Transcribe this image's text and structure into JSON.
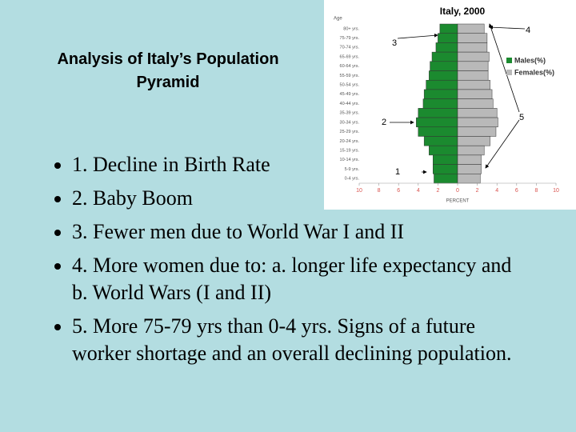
{
  "slide": {
    "title": "Analysis of Italy’s Population Pyramid",
    "bullets": [
      "1. Decline in Birth Rate",
      "2. Baby Boom",
      "3. Fewer men due to World War I and II",
      "4. More women due to: a. longer life expectancy and b. World Wars (I and II)",
      "5. More 75-79 yrs than 0-4 yrs. Signs of a future worker shortage and an overall declining population."
    ]
  },
  "chart_data": {
    "type": "pyramid",
    "title": "Italy, 2000",
    "y_label": "Age",
    "x_label": "PERCENT",
    "categories": [
      "80+ yrs.",
      "75-79 yrs.",
      "70-74 yrs.",
      "65-69 yrs.",
      "60-64 yrs.",
      "55-59 yrs.",
      "50-54 yrs.",
      "45-49 yrs.",
      "40-44 yrs.",
      "35-39 yrs.",
      "30-34 yrs.",
      "25-29 yrs.",
      "20-24 yrs.",
      "15-19 yrs.",
      "10-14 yrs.",
      "5-9 yrs.",
      "0-4 yrs."
    ],
    "series": [
      {
        "name": "Males(%)",
        "color": "#1b8a2f",
        "side": "left",
        "values": [
          1.8,
          2.0,
          2.2,
          2.6,
          2.8,
          2.9,
          3.2,
          3.4,
          3.5,
          4.0,
          4.2,
          4.0,
          3.4,
          2.9,
          2.5,
          2.5,
          2.4
        ]
      },
      {
        "name": "Females(%)",
        "color": "#b9b9b9",
        "side": "right",
        "values": [
          2.7,
          3.0,
          3.0,
          3.2,
          3.1,
          3.1,
          3.3,
          3.5,
          3.6,
          4.0,
          4.1,
          3.9,
          3.3,
          2.7,
          2.4,
          2.4,
          2.3
        ]
      }
    ],
    "xlim": [
      -10,
      10
    ],
    "xticks": [
      {
        "value": -10,
        "label": "10"
      },
      {
        "value": -8,
        "label": "8"
      },
      {
        "value": -6,
        "label": "6"
      },
      {
        "value": -4,
        "label": "4"
      },
      {
        "value": -2,
        "label": "2"
      },
      0,
      2,
      4,
      6,
      8,
      10
    ],
    "annotations": [
      "1",
      "2",
      "3",
      "4",
      "5"
    ]
  }
}
